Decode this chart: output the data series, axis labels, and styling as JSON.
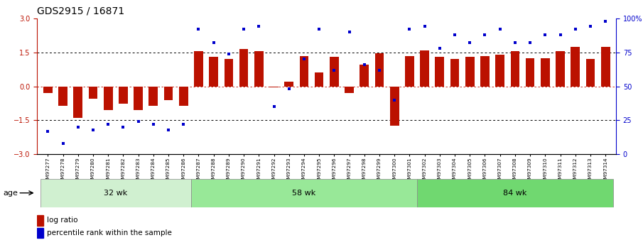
{
  "title": "GDS2915 / 16871",
  "samples": [
    "GSM97277",
    "GSM97278",
    "GSM97279",
    "GSM97280",
    "GSM97281",
    "GSM97282",
    "GSM97283",
    "GSM97284",
    "GSM97285",
    "GSM97286",
    "GSM97287",
    "GSM97288",
    "GSM97289",
    "GSM97290",
    "GSM97291",
    "GSM97292",
    "GSM97293",
    "GSM97294",
    "GSM97295",
    "GSM97296",
    "GSM97297",
    "GSM97298",
    "GSM97299",
    "GSM97300",
    "GSM97301",
    "GSM97302",
    "GSM97303",
    "GSM97304",
    "GSM97305",
    "GSM97306",
    "GSM97307",
    "GSM97308",
    "GSM97309",
    "GSM97310",
    "GSM97311",
    "GSM97312",
    "GSM97313",
    "GSM97314"
  ],
  "log_ratio": [
    -0.3,
    -0.85,
    -1.4,
    -0.55,
    -1.05,
    -0.75,
    -1.05,
    -0.85,
    -0.6,
    -0.85,
    1.57,
    1.3,
    1.2,
    1.65,
    1.55,
    -0.05,
    0.2,
    1.35,
    0.6,
    1.3,
    -0.3,
    0.95,
    1.45,
    -1.75,
    1.35,
    1.6,
    1.3,
    1.2,
    1.3,
    1.35,
    1.4,
    1.55,
    1.25,
    1.25,
    1.55,
    1.75,
    1.2,
    1.75
  ],
  "percentile": [
    17,
    8,
    20,
    18,
    22,
    20,
    24,
    22,
    18,
    22,
    92,
    82,
    74,
    92,
    94,
    35,
    48,
    70,
    92,
    62,
    90,
    66,
    62,
    40,
    92,
    94,
    78,
    88,
    82,
    88,
    92,
    82,
    82,
    88,
    88,
    92,
    94,
    98
  ],
  "groups": [
    {
      "label": "32 wk",
      "start": 0,
      "end": 10,
      "color": "#d0f0d0"
    },
    {
      "label": "58 wk",
      "start": 10,
      "end": 25,
      "color": "#98e898"
    },
    {
      "label": "84 wk",
      "start": 25,
      "end": 38,
      "color": "#70d870"
    }
  ],
  "bar_color": "#bb1100",
  "dot_color": "#0000cc",
  "ylim_left": [
    -3,
    3
  ],
  "ylim_right": [
    0,
    100
  ],
  "yticks_left": [
    -3,
    -1.5,
    0,
    1.5,
    3
  ],
  "yticks_right": [
    0,
    25,
    50,
    75,
    100
  ],
  "age_label": "age",
  "legend_items": [
    {
      "color": "#bb1100",
      "label": "log ratio"
    },
    {
      "color": "#0000cc",
      "label": "percentile rank within the sample"
    }
  ],
  "background_color": "#ffffff"
}
